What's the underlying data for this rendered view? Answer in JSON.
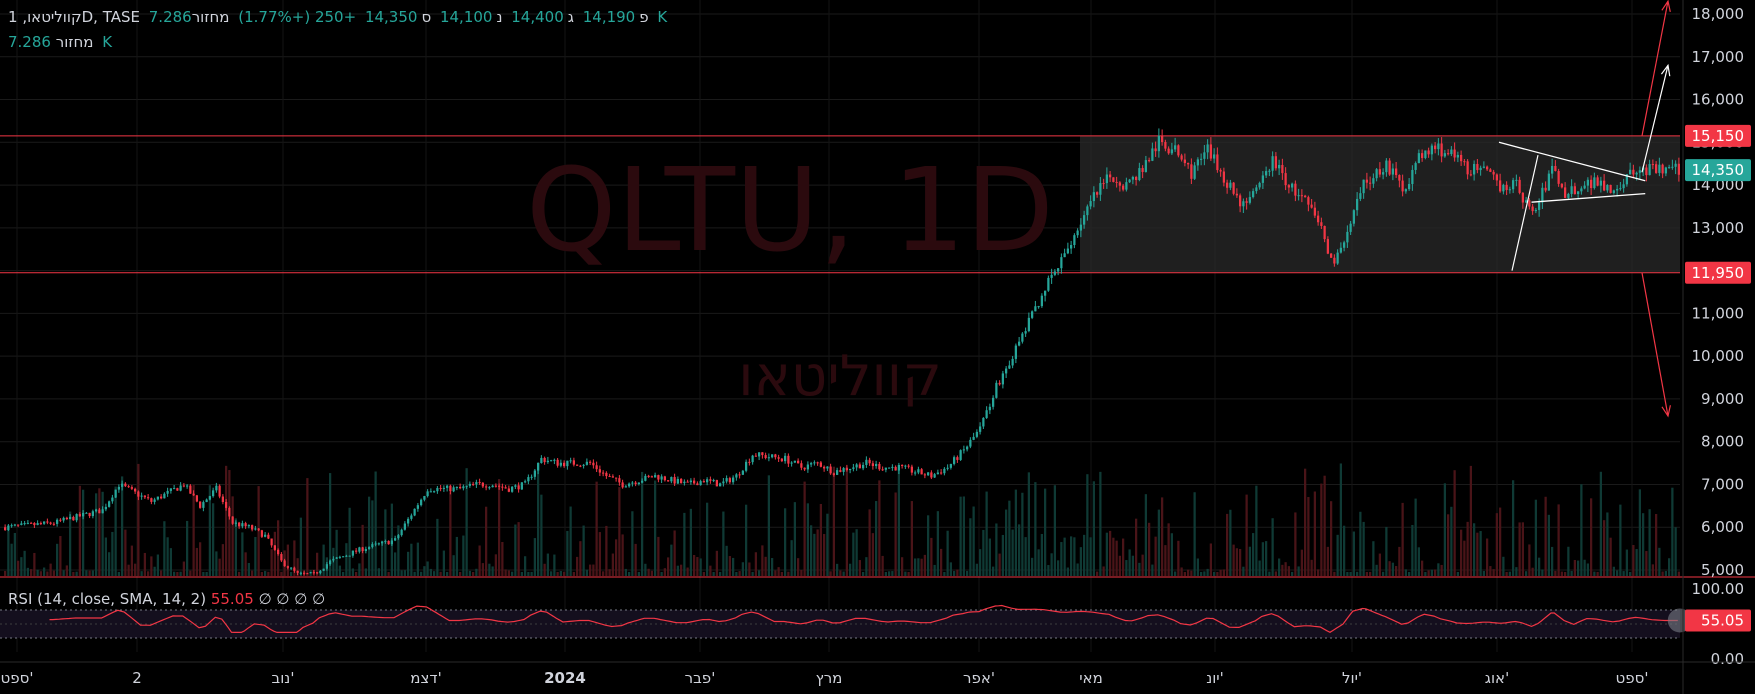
{
  "header": {
    "symbol": "קווליטאו, 1D, TASE",
    "open_label": "פ",
    "open": "14,190",
    "high_label": "ג",
    "high": "14,400",
    "low_label": "נ",
    "low": "14,100",
    "close_label": "ס",
    "close": "14,350",
    "change": "+250 (+1.77%)",
    "volume_label": "מחזור",
    "volume": "7.286 K"
  },
  "rsi_legend": {
    "label": "RSI (14, close, SMA, 14, 2)",
    "value": "55.05",
    "placeholders": "∅ ∅ ∅ ∅"
  },
  "watermark": {
    "ticker": "QLTU, 1D",
    "name": "קווליטאו"
  },
  "colors": {
    "up": "#26a69a",
    "down": "#f23645",
    "bg": "#000000",
    "text": "#d1d4dc"
  },
  "chart_data": [
    {
      "type": "candlestick",
      "title": "קווליטאו, 1D, TASE",
      "y_ticks": [
        "5,000",
        "6,000",
        "7,000",
        "8,000",
        "9,000",
        "10,000",
        "11,000",
        "12,000",
        "13,000",
        "14,000",
        "15,000",
        "16,000",
        "17,000",
        "18,000"
      ],
      "ylim": [
        4700,
        18300
      ],
      "x_ticks": [
        "ספט'",
        "2",
        "נוב'",
        "דצמ'",
        "2024",
        "פבר'",
        "מרץ",
        "אפר'",
        "מאי",
        "יונ'",
        "יול'",
        "אוג'",
        "ספט'"
      ],
      "price_labels": {
        "resistance": "15,150",
        "last": "14,350",
        "support": "11,950"
      },
      "levels": {
        "resistance": 15150,
        "support": 11950
      },
      "path": [
        [
          0,
          6000
        ],
        [
          15,
          6100
        ],
        [
          25,
          6300
        ],
        [
          30,
          6400
        ],
        [
          35,
          7000
        ],
        [
          40,
          6800
        ],
        [
          45,
          6600
        ],
        [
          55,
          7000
        ],
        [
          60,
          6500
        ],
        [
          65,
          6900
        ],
        [
          70,
          6100
        ],
        [
          75,
          6000
        ],
        [
          80,
          5800
        ],
        [
          85,
          5200
        ],
        [
          90,
          4900
        ],
        [
          95,
          4900
        ],
        [
          100,
          5200
        ],
        [
          110,
          5500
        ],
        [
          120,
          5700
        ],
        [
          125,
          6300
        ],
        [
          130,
          6900
        ],
        [
          140,
          6900
        ],
        [
          145,
          7000
        ],
        [
          150,
          7000
        ],
        [
          155,
          6900
        ],
        [
          160,
          7000
        ],
        [
          165,
          7600
        ],
        [
          170,
          7500
        ],
        [
          180,
          7500
        ],
        [
          185,
          7200
        ],
        [
          190,
          7000
        ],
        [
          195,
          7100
        ],
        [
          200,
          7200
        ],
        [
          205,
          7100
        ],
        [
          210,
          7000
        ],
        [
          215,
          7100
        ],
        [
          220,
          7000
        ],
        [
          225,
          7200
        ],
        [
          230,
          7700
        ],
        [
          240,
          7600
        ],
        [
          245,
          7400
        ],
        [
          250,
          7500
        ],
        [
          255,
          7300
        ],
        [
          265,
          7500
        ],
        [
          270,
          7400
        ],
        [
          275,
          7400
        ],
        [
          280,
          7300
        ],
        [
          285,
          7200
        ],
        [
          290,
          7400
        ],
        [
          295,
          7800
        ],
        [
          300,
          8300
        ],
        [
          305,
          9300
        ],
        [
          310,
          10000
        ],
        [
          315,
          10800
        ],
        [
          320,
          11600
        ],
        [
          325,
          12200
        ],
        [
          330,
          13000
        ],
        [
          335,
          13700
        ],
        [
          340,
          14200
        ],
        [
          345,
          14000
        ],
        [
          350,
          14400
        ],
        [
          355,
          15000
        ],
        [
          360,
          14800
        ],
        [
          365,
          14300
        ],
        [
          370,
          14800
        ],
        [
          375,
          14200
        ],
        [
          380,
          13600
        ],
        [
          385,
          13800
        ],
        [
          390,
          14600
        ],
        [
          395,
          14000
        ],
        [
          400,
          13600
        ],
        [
          405,
          13000
        ],
        [
          408,
          12200
        ],
        [
          412,
          12600
        ],
        [
          418,
          14000
        ],
        [
          425,
          14500
        ],
        [
          430,
          13900
        ],
        [
          435,
          14600
        ],
        [
          440,
          14900
        ],
        [
          445,
          14700
        ],
        [
          450,
          14400
        ],
        [
          455,
          14300
        ],
        [
          460,
          14000
        ],
        [
          465,
          14000
        ],
        [
          470,
          13300
        ],
        [
          473,
          13800
        ],
        [
          476,
          14400
        ],
        [
          480,
          13800
        ],
        [
          485,
          14000
        ],
        [
          490,
          14100
        ],
        [
          495,
          13900
        ],
        [
          500,
          14250
        ],
        [
          504,
          14350
        ]
      ],
      "projections": [
        {
          "color": "#f23645",
          "points": [
            [
              504,
              15150
            ],
            [
              512,
              18300
            ]
          ]
        },
        {
          "color": "#ffffff",
          "points": [
            [
              504,
              14300
            ],
            [
              512,
              16800
            ]
          ]
        },
        {
          "color": "#f23645",
          "points": [
            [
              504,
              11950
            ],
            [
              512,
              8600
            ]
          ]
        }
      ],
      "triangle": {
        "upper": [
          [
            460,
            15000
          ],
          [
            505,
            14100
          ]
        ],
        "lower": [
          [
            470,
            13600
          ],
          [
            505,
            13800
          ]
        ]
      }
    },
    {
      "type": "line",
      "title": "RSI (14, close, SMA, 14, 2)",
      "y_ticks": [
        "0.00",
        "55.05",
        "100.00"
      ],
      "ylim": [
        0,
        100
      ],
      "current": 55.05,
      "bands": [
        30,
        70
      ]
    }
  ]
}
